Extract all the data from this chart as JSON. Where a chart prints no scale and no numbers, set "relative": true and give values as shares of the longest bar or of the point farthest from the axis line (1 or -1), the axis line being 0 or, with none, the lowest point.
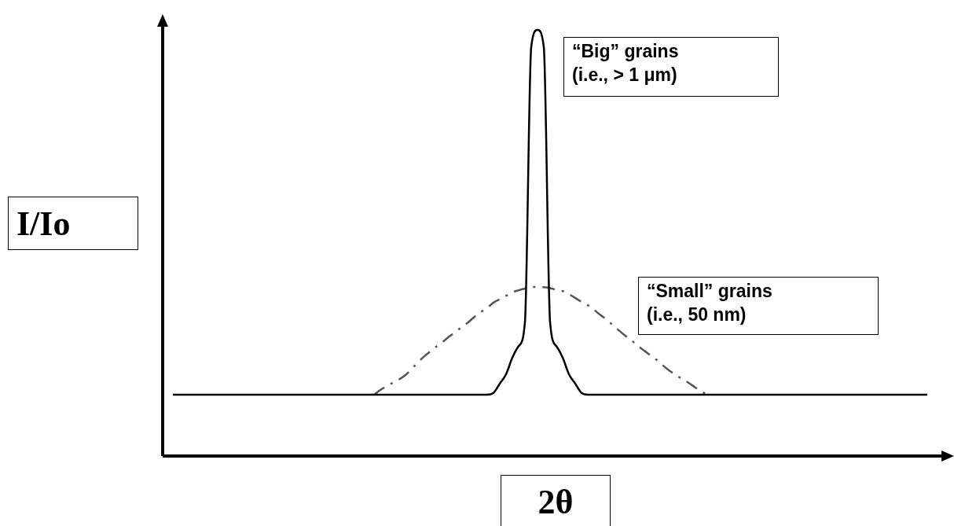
{
  "chart_data": {
    "type": "line",
    "relative": true,
    "xlabel": "2θ",
    "ylabel": "I/Io",
    "marker": "none",
    "legend": false,
    "annotations": [
      "“Big” grains\n(i.e., > 1 μm)",
      "“Small” grains\n(i.e., 50 nm)"
    ],
    "categories": [
      null,
      null,
      null,
      null,
      null,
      null,
      null,
      null,
      null,
      null,
      null,
      null,
      null,
      null,
      null,
      null,
      null,
      null,
      null,
      null,
      null,
      null,
      null,
      null,
      null,
      null,
      null,
      null,
      null,
      null,
      null,
      null,
      null,
      null,
      null,
      null,
      null,
      null,
      null,
      null,
      null,
      null,
      null,
      null,
      null,
      null,
      null,
      null,
      null,
      null,
      null,
      null,
      null,
      null,
      null,
      null,
      null,
      null,
      null,
      null,
      null,
      null,
      null,
      null,
      null,
      null,
      null,
      null,
      null,
      null,
      null,
      null,
      null,
      null,
      null,
      null,
      null,
      null,
      null,
      null,
      null,
      null,
      null,
      null,
      null,
      null,
      null,
      null,
      null,
      null,
      null,
      null,
      null,
      null,
      null,
      null,
      null,
      null,
      null,
      null,
      null,
      null,
      null,
      null,
      null,
      null,
      null,
      null,
      null,
      null,
      null,
      null,
      null,
      null,
      null,
      null,
      null,
      null,
      null,
      null,
      null
    ],
    "series": [
      {
        "color": "#000000",
        "line_style": "solid",
        "values": [
          0.144,
          0.144,
          0.144,
          0.144,
          0.144,
          0.144,
          0.144,
          0.144,
          0.144,
          0.144,
          0.144,
          0.144,
          0.144,
          0.144,
          0.144,
          0.144,
          0.144,
          0.144,
          0.144,
          0.144,
          0.144,
          0.144,
          0.144,
          0.144,
          0.144,
          0.144,
          0.144,
          0.144,
          0.144,
          0.144,
          0.144,
          0.144,
          0.144,
          0.144,
          0.144,
          0.144,
          0.144,
          0.144,
          0.144,
          0.144,
          0.144,
          0.144,
          0.144,
          0.144,
          0.144,
          0.144,
          0.144,
          0.144,
          0.144,
          0.144,
          0.144,
          0.148,
          0.17,
          0.192,
          0.231,
          0.258,
          0.314,
          0.96,
          1,
          0.96,
          0.314,
          0.258,
          0.231,
          0.192,
          0.17,
          0.148,
          0.144,
          0.144,
          0.144,
          0.144,
          0.144,
          0.144,
          0.144,
          0.144,
          0.144,
          0.144,
          0.144,
          0.144,
          0.144,
          0.144,
          0.144,
          0.144,
          0.144,
          0.144,
          0.144,
          0.144,
          0.144,
          0.144,
          0.144,
          0.144,
          0.144,
          0.144,
          0.144,
          0.144,
          0.144,
          0.144,
          0.144,
          0.144,
          0.144,
          0.144,
          0.144,
          0.144,
          0.144,
          0.144,
          0.144,
          0.144,
          0.144,
          0.144,
          0.144,
          0.144,
          0.144,
          0.144,
          0.144,
          0.144,
          0.144,
          0.144,
          0.144,
          0.144,
          0.144,
          0.144,
          0.144
        ]
      },
      {
        "color": "#555555",
        "line_style": "dashed",
        "values": [
          null,
          null,
          null,
          null,
          null,
          null,
          null,
          null,
          null,
          null,
          null,
          null,
          null,
          null,
          null,
          null,
          null,
          null,
          null,
          null,
          null,
          null,
          null,
          null,
          null,
          null,
          null,
          null,
          null,
          null,
          null,
          null,
          0.144,
          0.155,
          0.164,
          0.172,
          0.18,
          0.19,
          0.205,
          0.22,
          0.234,
          0.246,
          0.258,
          0.269,
          0.281,
          0.292,
          0.303,
          0.314,
          0.327,
          0.338,
          0.348,
          0.36,
          0.368,
          0.376,
          0.384,
          0.389,
          0.393,
          0.396,
          0.397,
          0.396,
          0.394,
          0.39,
          0.387,
          0.38,
          0.371,
          0.362,
          0.354,
          0.343,
          0.331,
          0.32,
          0.307,
          0.294,
          0.282,
          0.271,
          0.258,
          0.247,
          0.236,
          0.225,
          0.212,
          0.2,
          0.19,
          0.181,
          0.172,
          0.162,
          0.152,
          0.144,
          null,
          null,
          null,
          null,
          null,
          null,
          null,
          null,
          null,
          null,
          null,
          null,
          null,
          null,
          null,
          null,
          null,
          null,
          null,
          null,
          null,
          null,
          null,
          null,
          null,
          null,
          null,
          null,
          null,
          null,
          null,
          null,
          null,
          null,
          null
        ]
      }
    ]
  }
}
